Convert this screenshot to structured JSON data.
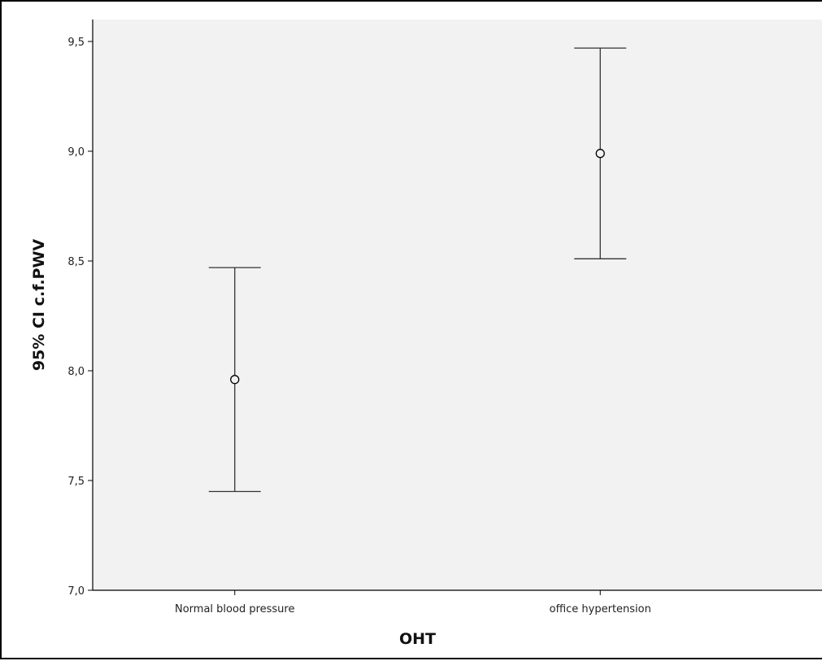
{
  "chart_data": {
    "type": "errorbar",
    "xlabel": "OHT",
    "ylabel": "95% CI c.f.PWV",
    "ylim": [
      7.0,
      9.6
    ],
    "yticks": [
      7.0,
      7.5,
      8.0,
      8.5,
      9.0,
      9.5
    ],
    "ytick_labels": [
      "7,0",
      "7,5",
      "8,0",
      "8,5",
      "9,0",
      "9,5"
    ],
    "categories": [
      "Normal blood pressure",
      "office hypertension"
    ],
    "mean": [
      7.96,
      8.99
    ],
    "ci_lower": [
      7.45,
      8.51
    ],
    "ci_upper": [
      8.47,
      9.47
    ],
    "grid": false,
    "colors": {
      "plot_bg": "#f2f2f2",
      "marks": "#333333"
    }
  }
}
